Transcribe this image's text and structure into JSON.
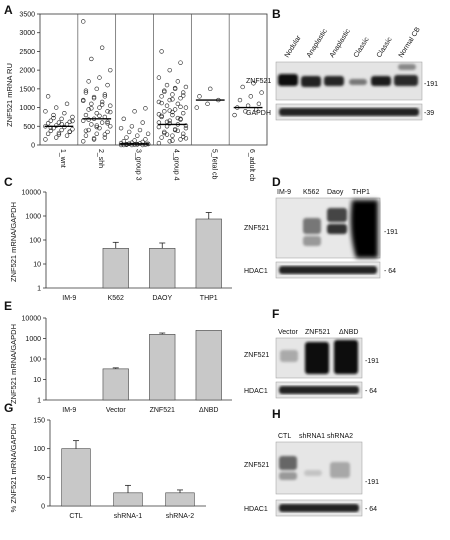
{
  "panels": [
    "A",
    "B",
    "C",
    "D",
    "E",
    "F",
    "G",
    "H"
  ],
  "chart_data": [
    {
      "id": "A",
      "type": "scatter",
      "ylabel": "ZNF521 mRNA RU",
      "ylim": [
        0,
        3500
      ],
      "yticks": [
        "0",
        "500",
        "1000",
        "1500",
        "2000",
        "2500",
        "3000",
        "3500"
      ],
      "categories": [
        "1_wnt",
        "2_shh",
        "3_group 3",
        "4_group 4",
        "5_fetal cb",
        "6_adult cb"
      ],
      "medians": [
        500,
        700,
        30,
        550,
        1200,
        1000
      ],
      "points": [
        [
          150,
          200,
          250,
          300,
          320,
          350,
          380,
          400,
          420,
          450,
          480,
          500,
          520,
          550,
          580,
          600,
          620,
          650,
          700,
          750,
          800,
          850,
          900,
          1000,
          1100,
          1300,
          280,
          360,
          460,
          560,
          640,
          720
        ],
        [
          100,
          150,
          200,
          250,
          300,
          350,
          400,
          450,
          500,
          550,
          600,
          650,
          700,
          750,
          800,
          850,
          900,
          950,
          1000,
          1050,
          1100,
          1150,
          1200,
          1250,
          1300,
          1400,
          1500,
          1600,
          1700,
          1800,
          2000,
          2300,
          2600,
          3300,
          180,
          280,
          380,
          480,
          580,
          680,
          780,
          880,
          980,
          1080,
          1180,
          1280,
          1350,
          1450,
          520,
          620
        ],
        [
          0,
          0,
          0,
          0,
          10,
          10,
          20,
          20,
          30,
          30,
          40,
          50,
          60,
          80,
          100,
          120,
          150,
          200,
          250,
          300,
          350,
          400,
          450,
          500,
          600,
          700,
          900,
          980,
          5,
          15,
          25,
          35
        ],
        [
          50,
          100,
          150,
          200,
          250,
          300,
          350,
          400,
          450,
          500,
          550,
          600,
          650,
          700,
          750,
          800,
          850,
          900,
          950,
          1000,
          1050,
          1100,
          1150,
          1200,
          1250,
          1300,
          1350,
          1400,
          1450,
          1500,
          1550,
          1600,
          1700,
          1800,
          2000,
          2200,
          2500,
          120,
          220,
          320,
          420,
          520,
          620,
          720,
          820,
          920,
          1020,
          1120,
          1220,
          1320,
          1420,
          1520,
          180,
          280,
          380,
          480,
          580,
          680,
          780,
          880
        ],
        [
          1000,
          1100,
          1200,
          1300,
          1500
        ],
        [
          800,
          900,
          950,
          1000,
          1050,
          1100,
          1200,
          1300,
          1400,
          1550,
          1650
        ]
      ]
    },
    {
      "id": "C",
      "type": "bar",
      "log": true,
      "ylabel": "ZNF521 mRNA/GAPDH",
      "ylim": [
        1,
        10000
      ],
      "yticks": [
        "1",
        "10",
        "100",
        "1000",
        "10000"
      ],
      "categories": [
        "IM-9",
        "K562",
        "DAOY",
        "THP1"
      ],
      "values": [
        1,
        45,
        45,
        750
      ],
      "errors": [
        0,
        35,
        30,
        650
      ]
    },
    {
      "id": "E",
      "type": "bar",
      "log": true,
      "ylabel": "ZNF521 mRNA/GAPDH",
      "ylim": [
        1,
        10000
      ],
      "yticks": [
        "1",
        "10",
        "100",
        "1000",
        "10000"
      ],
      "categories": [
        "IM-9",
        "Vector",
        "ZNF521",
        "ΔNBD"
      ],
      "values": [
        1,
        33,
        1600,
        2500
      ],
      "errors": [
        0,
        4,
        250,
        0
      ]
    },
    {
      "id": "G",
      "type": "bar",
      "log": false,
      "ylabel": "% ZNF521 mRNA/GAPDH",
      "ylim": [
        0,
        150
      ],
      "yticks": [
        "0",
        "50",
        "100",
        "150"
      ],
      "categories": [
        "CTL",
        "shRNA-1",
        "shRNA-2"
      ],
      "values": [
        100,
        23,
        23
      ],
      "errors": [
        14,
        13,
        5
      ]
    }
  ],
  "blots": {
    "B": {
      "lanes": [
        "Nodular",
        "Anaplastic",
        "Anaplastic",
        "Classic",
        "Classic",
        "Normal CB"
      ],
      "rows": [
        "ZNF521",
        "GAPDH"
      ],
      "markers": [
        "-191",
        "-39"
      ]
    },
    "D": {
      "lanes": [
        "IM-9",
        "K562",
        "Daoy",
        "THP1"
      ],
      "rows": [
        "ZNF521",
        "HDAC1"
      ],
      "markers": [
        "-191",
        "- 64"
      ]
    },
    "F": {
      "lanes": [
        "Vector",
        "ZNF521",
        "ΔNBD"
      ],
      "rows": [
        "ZNF521",
        "HDAC1"
      ],
      "markers": [
        "-191",
        "- 64"
      ]
    },
    "H": {
      "lanes": [
        "CTL",
        "shRNA1",
        "shRNA2"
      ],
      "rows": [
        "ZNF521",
        "HDAC1"
      ],
      "markers": [
        "-191",
        "- 64"
      ]
    }
  }
}
